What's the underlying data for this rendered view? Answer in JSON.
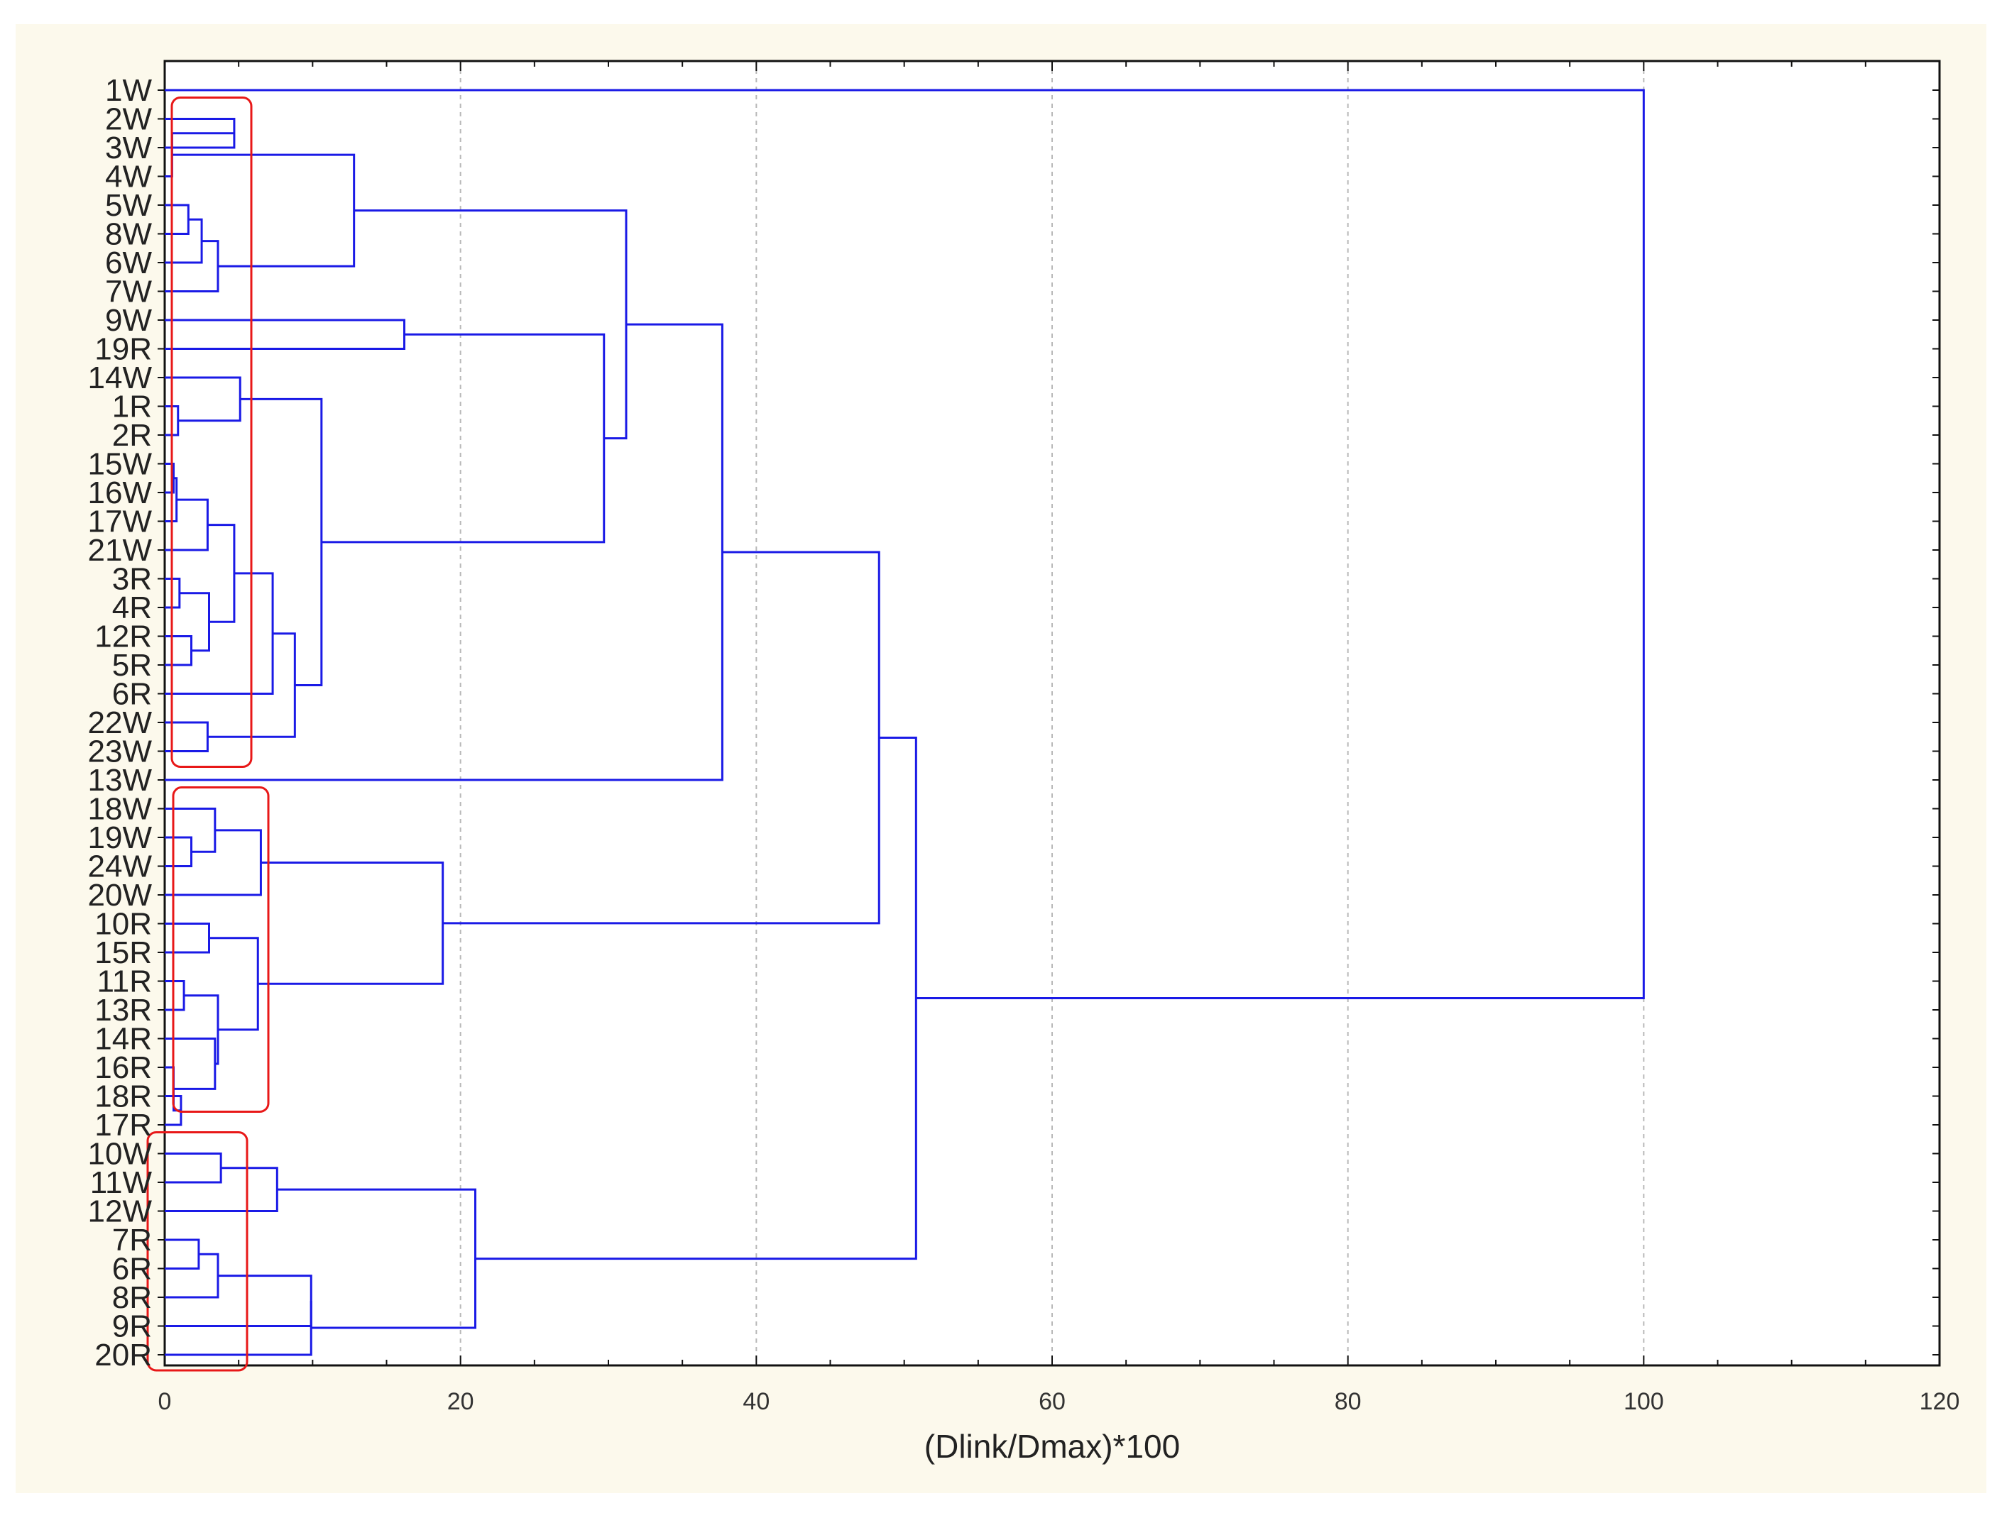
{
  "chart_data": {
    "type": "dendrogram",
    "orientation": "horizontal",
    "xlabel": "(Dlink/Dmax)*100",
    "xlim": [
      0,
      120
    ],
    "xticks": [
      0,
      20,
      40,
      60,
      80,
      100,
      120
    ],
    "grid_x": [
      20,
      40,
      60,
      80,
      100
    ],
    "leaves": [
      "1W",
      "2W",
      "3W",
      "4W",
      "5W",
      "8W",
      "6W",
      "7W",
      "9W",
      "19R",
      "14W",
      "1R",
      "2R",
      "15W",
      "16W",
      "17W",
      "21W",
      "3R",
      "4R",
      "12R",
      "5R",
      "6R",
      "22W",
      "23W",
      "13W",
      "18W",
      "19W",
      "24W",
      "20W",
      "10R",
      "15R",
      "11R",
      "13R",
      "14R",
      "16R",
      "18R",
      "17R",
      "10W",
      "11W",
      "12W",
      "7R",
      "6R",
      "8R",
      "9R",
      "20R"
    ],
    "merges": [
      {
        "id": "a",
        "left": "2W",
        "right": "3W",
        "height": 4.7
      },
      {
        "id": "b",
        "left": "4W",
        "right": "a",
        "height": 0.5
      },
      {
        "id": "c",
        "left": "5W",
        "right": "8W",
        "height": 1.6
      },
      {
        "id": "d",
        "left": "c",
        "right": "6W",
        "height": 2.5
      },
      {
        "id": "e",
        "left": "d",
        "right": "7W",
        "height": 3.6
      },
      {
        "id": "f",
        "left": "b",
        "right": "e",
        "height": 12.8
      },
      {
        "id": "g",
        "left": "9W",
        "right": "19R",
        "height": 16.2
      },
      {
        "id": "h",
        "left": "1R",
        "right": "2R",
        "height": 0.9
      },
      {
        "id": "i",
        "left": "14W",
        "right": "h",
        "height": 5.1
      },
      {
        "id": "j",
        "left": "15W",
        "right": "16W",
        "height": 0.6
      },
      {
        "id": "k",
        "left": "j",
        "right": "17W",
        "height": 0.8
      },
      {
        "id": "l",
        "left": "k",
        "right": "21W",
        "height": 2.9
      },
      {
        "id": "m",
        "left": "3R",
        "right": "4R",
        "height": 1.0
      },
      {
        "id": "n",
        "left": "12R",
        "right": "5R",
        "height": 1.8
      },
      {
        "id": "o",
        "left": "m",
        "right": "n",
        "height": 3.0
      },
      {
        "id": "p",
        "left": "l",
        "right": "o",
        "height": 4.7
      },
      {
        "id": "q",
        "left": "p",
        "right": "6R",
        "height": 7.3
      },
      {
        "id": "r",
        "left": "22W",
        "right": "23W",
        "height": 2.9
      },
      {
        "id": "s",
        "left": "q",
        "right": "r",
        "height": 8.8
      },
      {
        "id": "t",
        "left": "i",
        "right": "s",
        "height": 10.6
      },
      {
        "id": "u",
        "left": "g",
        "right": "t",
        "height": 29.7
      },
      {
        "id": "v",
        "left": "f",
        "right": "u",
        "height": 31.2
      },
      {
        "id": "w",
        "left": "v",
        "right": "13W",
        "height": 37.7
      },
      {
        "id": "x",
        "left": "19W",
        "right": "24W",
        "height": 1.8
      },
      {
        "id": "y",
        "left": "18W",
        "right": "x",
        "height": 3.4
      },
      {
        "id": "z",
        "left": "y",
        "right": "20W",
        "height": 6.5
      },
      {
        "id": "aa",
        "left": "10R",
        "right": "15R",
        "height": 3.0
      },
      {
        "id": "ab",
        "left": "11R",
        "right": "13R",
        "height": 1.3
      },
      {
        "id": "ac",
        "left": "18R",
        "right": "17R",
        "height": 1.1
      },
      {
        "id": "ad",
        "left": "16R",
        "right": "ac",
        "height": 0.6
      },
      {
        "id": "ae",
        "left": "14R",
        "right": "ad",
        "height": 3.4
      },
      {
        "id": "af",
        "left": "ab",
        "right": "ae",
        "height": 3.6
      },
      {
        "id": "ag",
        "left": "aa",
        "right": "af",
        "height": 6.3
      },
      {
        "id": "ah",
        "left": "z",
        "right": "ag",
        "height": 18.8
      },
      {
        "id": "ai",
        "left": "w",
        "right": "ah",
        "height": 48.3
      },
      {
        "id": "aj",
        "left": "10W",
        "right": "11W",
        "height": 3.8
      },
      {
        "id": "ak",
        "left": "aj",
        "right": "12W",
        "height": 7.6
      },
      {
        "id": "al",
        "left": "7R",
        "right": "6R",
        "height": 2.3
      },
      {
        "id": "am",
        "left": "al",
        "right": "8R",
        "height": 3.6
      },
      {
        "id": "an",
        "left": "am",
        "right": "9R",
        "height": 9.9
      },
      {
        "id": "ao",
        "left": "an",
        "right": "20R",
        "height": 9.9
      },
      {
        "id": "ap",
        "left": "ak",
        "right": "ao",
        "height": 21.0
      },
      {
        "id": "aq",
        "left": "ai",
        "right": "ap",
        "height": 50.8
      },
      {
        "id": "ar",
        "left": "1W",
        "right": "aq",
        "height": 100.0
      }
    ],
    "highlight_groups": [
      {
        "from_leaf": 1,
        "to_leaf": 23
      },
      {
        "from_leaf": 25,
        "to_leaf": 35
      },
      {
        "from_leaf": 37,
        "to_leaf": 44
      }
    ],
    "colors": {
      "branch": "#1a1ae6",
      "highlight": "#e81818",
      "grid": "#b8b8b8",
      "axis": "#111111",
      "background": "#fcf9ec",
      "plot": "#ffffff"
    }
  }
}
